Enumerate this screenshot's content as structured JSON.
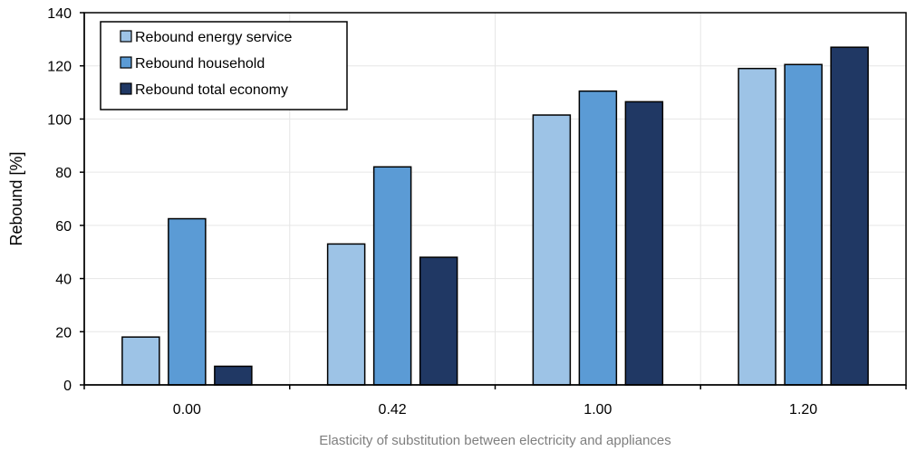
{
  "chart_data": {
    "type": "bar",
    "title": "",
    "xlabel": "Elasticity of substitution  between electricity  and appliances",
    "ylabel": "Rebound [%]",
    "ylim": [
      0,
      140
    ],
    "yticks": [
      0,
      20,
      40,
      60,
      80,
      100,
      120,
      140
    ],
    "categories": [
      "0.00",
      "0.42",
      "1.00",
      "1.20"
    ],
    "series": [
      {
        "name": "Rebound energy service",
        "color": "#9dc3e6",
        "values": [
          18,
          53,
          101.5,
          119
        ]
      },
      {
        "name": "Rebound household",
        "color": "#5b9bd5",
        "values": [
          62.5,
          82,
          110.5,
          120.5
        ]
      },
      {
        "name": "Rebound total economy",
        "color": "#203864",
        "values": [
          7,
          48,
          106.5,
          127
        ]
      }
    ],
    "grid": true,
    "legend_position": "top-left"
  }
}
